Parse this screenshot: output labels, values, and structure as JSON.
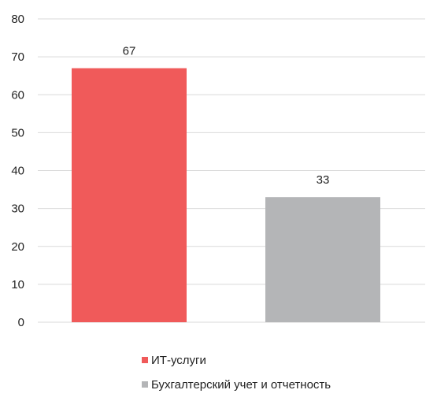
{
  "chart_data": {
    "type": "bar",
    "categories": [
      "ИТ-услуги",
      "Бухгалтерский учет и отчетность"
    ],
    "series": [
      {
        "values": [
          67,
          33
        ],
        "colors": [
          "#f05a5a",
          "#b4b5b7"
        ]
      }
    ],
    "data_labels": [
      "67",
      "33"
    ],
    "title": "",
    "xlabel": "",
    "ylabel": "",
    "ylim": [
      0,
      80
    ],
    "yticks": [
      0,
      10,
      20,
      30,
      40,
      50,
      60,
      70,
      80
    ],
    "grid": true,
    "legend": {
      "placement": "bottom",
      "entries": [
        {
          "label": "ИТ-услуги",
          "color": "#f05a5a"
        },
        {
          "label": "Бухгалтерский учет и отчетность",
          "color": "#b4b5b7"
        }
      ]
    }
  },
  "colors": {
    "grid": "#d9d9d9",
    "text": "#222222"
  }
}
